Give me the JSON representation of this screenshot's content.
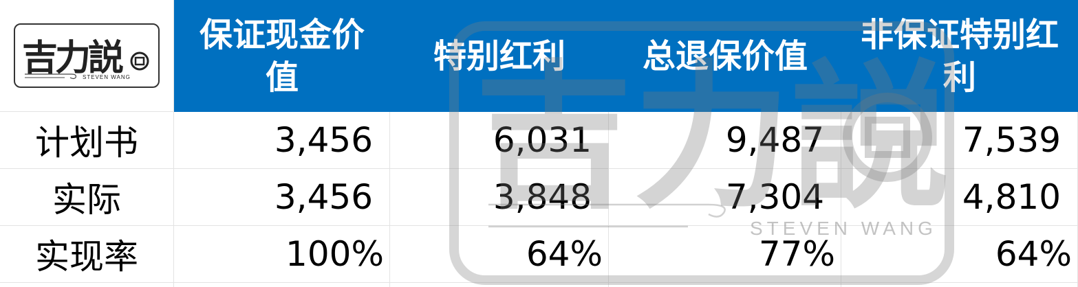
{
  "logo": {
    "text": "吉力説",
    "subtext": "STEVEN WANG"
  },
  "headers": [
    "保证现金价值",
    "特别红利",
    "总退保价值",
    "非保证特别红利"
  ],
  "rows": [
    {
      "label": "计划书",
      "values": [
        "3,456",
        "6,031",
        "9,487",
        "7,539"
      ]
    },
    {
      "label": "实际",
      "values": [
        "3,456",
        "3,848",
        "7,304",
        "4,810"
      ]
    },
    {
      "label": "实现率",
      "values": [
        "100%",
        "64%",
        "77%",
        "64%"
      ]
    }
  ],
  "watermark": {
    "text": "吉力説",
    "subtext": "STEVEN WANG"
  },
  "colors": {
    "header_bg": "#0070c0",
    "header_text": "#ffffff"
  }
}
